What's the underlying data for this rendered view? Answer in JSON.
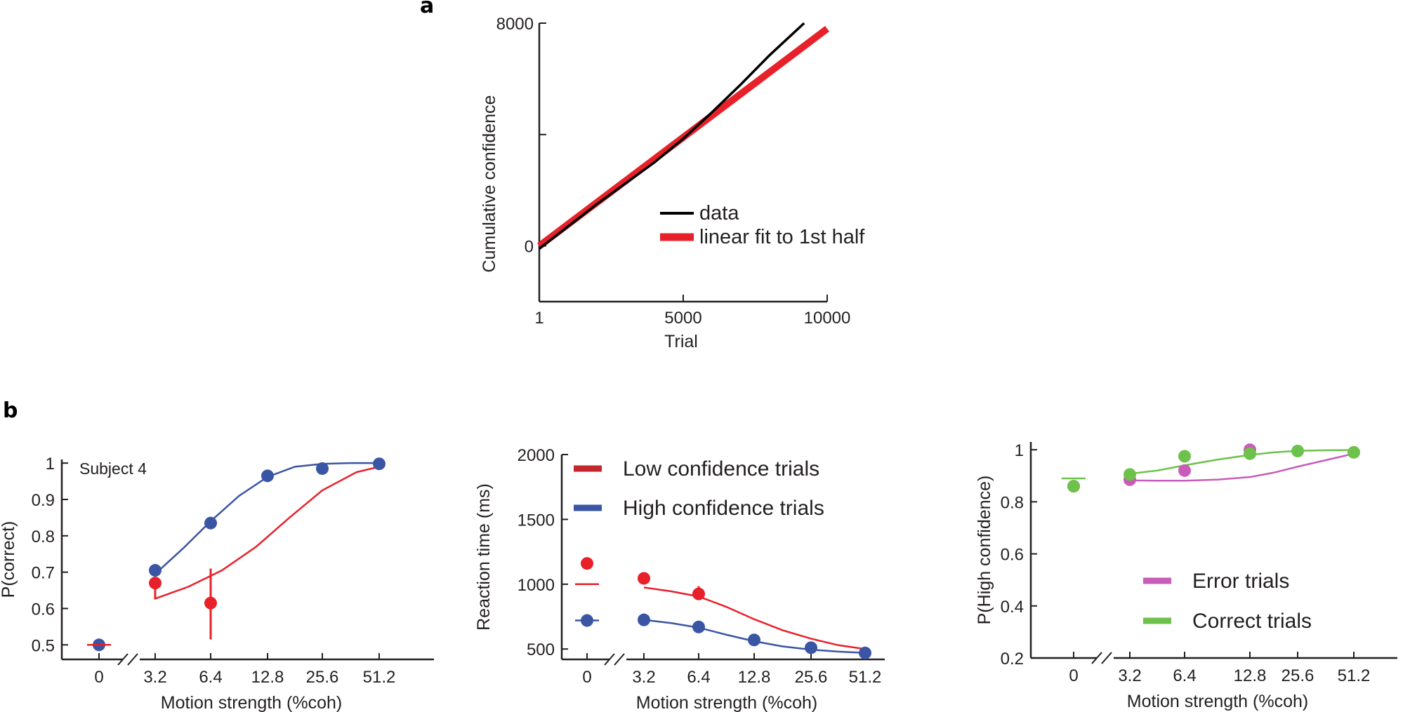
{
  "panel_labels": {
    "a": "a",
    "b": "b"
  },
  "colors": {
    "axis": "#231f20",
    "low": "#e8202a",
    "low_legend": "#c1272d",
    "high": "#3a55a4",
    "error": "#c85cb8",
    "correct": "#6cc24a",
    "data_line": "#000000"
  },
  "chart_data": [
    {
      "id": "a",
      "type": "line",
      "title": "",
      "xlabel": "Trial",
      "ylabel": "Cumulative confidence",
      "xlim": [
        1,
        10000
      ],
      "ylim": [
        -2000,
        8000
      ],
      "xticks": [
        {
          "v": 1,
          "label": "1"
        },
        {
          "v": 5000,
          "label": "5000"
        },
        {
          "v": 10000,
          "label": "10000"
        }
      ],
      "yticks": [
        {
          "v": 0,
          "label": "0"
        },
        {
          "v": 8000,
          "label": "8000"
        }
      ],
      "yminor": [
        4000
      ],
      "series": [
        {
          "name": "data",
          "x": [
            1,
            1000,
            2000,
            3000,
            4000,
            5000,
            6000,
            7000,
            8000,
            9200
          ],
          "y": [
            -100,
            700,
            1500,
            2250,
            3000,
            3850,
            4800,
            5800,
            6850,
            8000
          ]
        },
        {
          "name": "linear fit to 1st  half",
          "x": [
            1,
            10000
          ],
          "y": [
            0,
            7800
          ]
        }
      ],
      "legend": [
        "data",
        "linear fit to 1st  half"
      ]
    },
    {
      "id": "b1",
      "type": "scatter",
      "annotation": "Subject 4",
      "xlabel": "Motion strength (%coh)",
      "ylabel": "P(correct)",
      "categories": [
        "0",
        "3.2",
        "6.4",
        "12.8",
        "25.6",
        "51.2"
      ],
      "ylim": [
        0.46,
        1.01
      ],
      "yticks": [
        "0.5",
        "0.6",
        "0.7",
        "0.8",
        "0.9",
        "1"
      ],
      "series": [
        {
          "name": "Low confidence trials",
          "values": [
            0.5,
            0.67,
            0.615,
            null,
            null,
            null
          ],
          "err_low": [
            0.5,
            0.625,
            0.515,
            null,
            null,
            null
          ],
          "err_high": [
            0.5,
            0.67,
            0.71,
            null,
            null,
            null
          ]
        },
        {
          "name": "High confidence trials",
          "values": [
            0.5,
            0.705,
            0.835,
            0.965,
            0.985,
            0.998
          ]
        }
      ],
      "fits": [
        {
          "name": "Low confidence fit",
          "x": [
            1.0,
            1.6,
            2.2,
            2.8,
            3.4,
            4.0,
            4.6,
            5.0
          ],
          "y": [
            0.627,
            0.66,
            0.705,
            0.77,
            0.85,
            0.925,
            0.975,
            0.99
          ]
        },
        {
          "name": "High confidence fit",
          "x": [
            1.0,
            1.5,
            2.0,
            2.5,
            3.0,
            3.5,
            4.0,
            4.5,
            5.0
          ],
          "y": [
            0.695,
            0.765,
            0.84,
            0.91,
            0.962,
            0.99,
            0.998,
            1.0,
            1.0
          ]
        }
      ]
    },
    {
      "id": "b2",
      "type": "scatter",
      "xlabel": "Motion strength (%coh)",
      "ylabel": "Reaction time (ms)",
      "categories": [
        "0",
        "3.2",
        "6.4",
        "12.8",
        "25.6",
        "51.2"
      ],
      "ylim": [
        420,
        2000
      ],
      "yticks": [
        "500",
        "1000",
        "1500",
        "2000"
      ],
      "series": [
        {
          "name": "Low confidence trials",
          "values": [
            1160,
            1045,
            925,
            null,
            null,
            null
          ],
          "err_low": [
            null,
            null,
            885,
            null,
            null,
            null
          ],
          "err_high": [
            null,
            null,
            985,
            null,
            null,
            null
          ]
        },
        {
          "name": "High confidence trials",
          "values": [
            720,
            725,
            670,
            570,
            510,
            470
          ]
        }
      ],
      "fits": [
        {
          "name": "Low confidence fit",
          "x": [
            1.0,
            1.5,
            2.0,
            2.5,
            3.0,
            3.5,
            4.0,
            4.5,
            5.0
          ],
          "y": [
            975,
            945,
            905,
            825,
            730,
            645,
            580,
            530,
            500
          ]
        },
        {
          "name": "High confidence fit",
          "x": [
            1.0,
            1.5,
            2.0,
            2.5,
            3.0,
            3.5,
            4.0,
            4.5,
            5.0
          ],
          "y": [
            725,
            700,
            665,
            610,
            560,
            520,
            495,
            480,
            470
          ]
        }
      ],
      "hlines": [
        {
          "series": "Low confidence trials",
          "y": 1000
        },
        {
          "series": "High confidence trials",
          "y": 720
        }
      ],
      "legend": [
        "Low confidence trials",
        "High confidence trials"
      ]
    },
    {
      "id": "b3",
      "type": "scatter",
      "xlabel": "Motion strength (%coh)",
      "ylabel": "P(High confidence)",
      "categories": [
        "0",
        "3.2",
        "6.4",
        "12.8",
        "25.6",
        "51.2"
      ],
      "ylim": [
        0.2,
        1.03
      ],
      "yticks": [
        "0.2",
        "0.4",
        "0.6",
        "0.8",
        "1"
      ],
      "series": [
        {
          "name": "Error trials",
          "values": [
            0.86,
            0.885,
            0.92,
            1.0,
            null,
            null
          ]
        },
        {
          "name": "Correct trials",
          "values": [
            0.86,
            0.905,
            0.975,
            0.985,
            0.995,
            0.99
          ]
        }
      ],
      "fits": [
        {
          "name": "Error fit",
          "x": [
            1.0,
            1.5,
            2.0,
            2.5,
            3.0,
            3.5,
            4.0,
            4.5,
            5.0
          ],
          "y": [
            0.882,
            0.881,
            0.881,
            0.885,
            0.895,
            0.912,
            0.935,
            0.96,
            0.985
          ]
        },
        {
          "name": "Correct fit",
          "x": [
            1.0,
            1.5,
            2.0,
            2.5,
            3.0,
            3.5,
            4.0,
            4.5,
            5.0
          ],
          "y": [
            0.908,
            0.92,
            0.94,
            0.962,
            0.98,
            0.99,
            0.996,
            0.998,
            0.999
          ]
        }
      ],
      "hlines": [
        {
          "series": "Correct trials",
          "y": 0.89
        }
      ],
      "legend": [
        "Error trials",
        "Correct trials"
      ]
    }
  ]
}
